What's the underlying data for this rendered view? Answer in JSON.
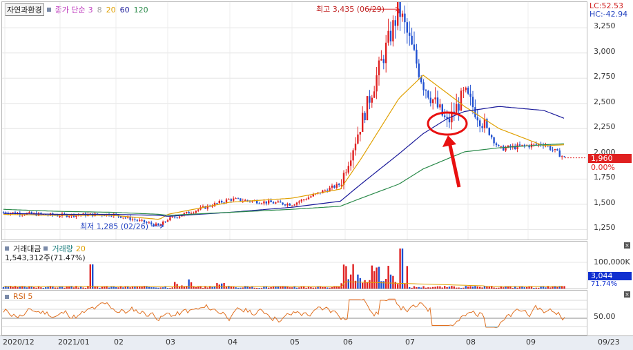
{
  "legend": {
    "title": "자연과환경",
    "ma_label": "종가 단순",
    "ma_periods": [
      {
        "value": "3",
        "color": "#c040c0"
      },
      {
        "value": "8",
        "color": "#a0a0a0"
      },
      {
        "value": "20",
        "color": "#e0a000"
      },
      {
        "value": "60",
        "color": "#1a1a9a"
      },
      {
        "value": "120",
        "color": "#2a8a4a"
      }
    ]
  },
  "price_axis": {
    "ticks": [
      "3,250",
      "3,000",
      "2,750",
      "2,500",
      "2,250",
      "2,000",
      "1,750",
      "1,500",
      "1,250"
    ],
    "lc_label": "LC:52.53",
    "hc_label": "HC:-42.94",
    "current_price": "1,960",
    "current_change": "0.00%"
  },
  "annotations": {
    "high": "최고 3,435 (06/29)",
    "low": "최저 1,285 (02/26)"
  },
  "volume": {
    "legend_amount": "거래대금",
    "legend_volume": "거래량",
    "legend_period": "20",
    "summary": "1,543,312주(71.47%)",
    "axis_tick": "100,000K",
    "current_value": "3,044",
    "current_pct": "71.74%"
  },
  "rsi": {
    "label": "RSI 5",
    "axis_tick": "50.00"
  },
  "x_axis": {
    "labels": [
      "2020/12",
      "2021/01",
      "02",
      "03",
      "04",
      "05",
      "06",
      "07",
      "08",
      "09"
    ],
    "last_date": "09/23"
  },
  "chart_data": {
    "type": "candlestick",
    "title": "자연과환경",
    "ylim": [
      1150,
      3450
    ],
    "series": [
      {
        "name": "price_keypoints",
        "x": [
          "2020/12",
          "2021/01",
          "2021/02",
          "2021/02/26",
          "2021/03",
          "2021/04",
          "2021/05",
          "2021/05/25",
          "2021/06/10",
          "2021/06/29",
          "2021/07/10",
          "2021/07/25",
          "2021/08/05",
          "2021/08/20",
          "2021/09/10",
          "2021/09/23"
        ],
        "values": [
          1420,
          1390,
          1400,
          1285,
          1350,
          1550,
          1500,
          1700,
          2300,
          3435,
          2700,
          2300,
          2600,
          2050,
          2100,
          1960
        ]
      },
      {
        "name": "MA20",
        "values": [
          1400,
          1390,
          1390,
          1350,
          1400,
          1520,
          1560,
          1650,
          1950,
          2550,
          2780,
          2600,
          2470,
          2250,
          2080,
          2090
        ]
      },
      {
        "name": "MA60",
        "values": [
          1410,
          1400,
          1400,
          1390,
          1380,
          1420,
          1470,
          1530,
          1700,
          2000,
          2200,
          2350,
          2420,
          2470,
          2430,
          2350
        ]
      },
      {
        "name": "MA120",
        "values": [
          1450,
          1430,
          1420,
          1400,
          1390,
          1420,
          1450,
          1480,
          1560,
          1700,
          1850,
          1950,
          2020,
          2060,
          2090,
          2100
        ]
      }
    ]
  }
}
